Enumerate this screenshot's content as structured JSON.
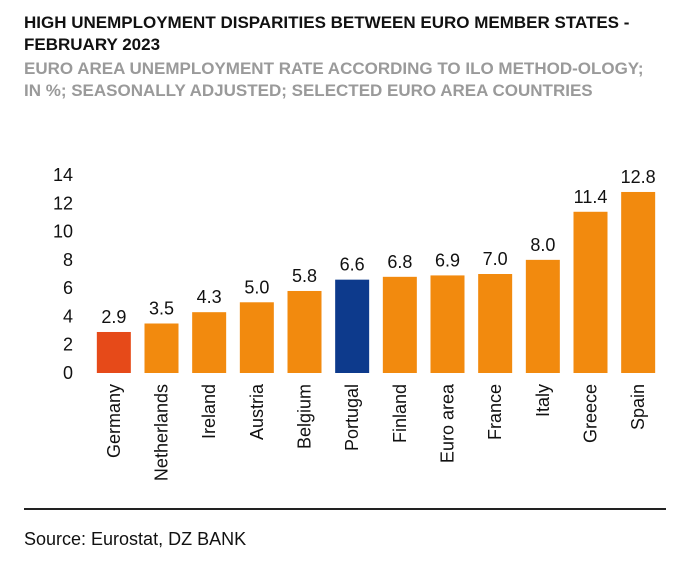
{
  "title": "HIGH UNEMPLOYMENT DISPARITIES BETWEEN EURO MEMBER STATES - FEBRUARY 2023",
  "subtitle": "EURO AREA UNEMPLOYMENT RATE ACCORDING TO ILO METHOD-OLOGY; IN %; SEASONALLY ADJUSTED; SELECTED EURO AREA COUNTRIES",
  "source": "Source: Eurostat, DZ BANK",
  "colors": {
    "default": "#F28A0E",
    "germany": "#E64A19",
    "portugal": "#0D3A8C"
  },
  "chart_data": {
    "type": "bar",
    "categories": [
      "Germany",
      "Netherlands",
      "Ireland",
      "Austria",
      "Belgium",
      "Portugal",
      "Finland",
      "Euro area",
      "France",
      "Italy",
      "Greece",
      "Spain"
    ],
    "values": [
      2.9,
      3.5,
      4.3,
      5.0,
      5.8,
      6.6,
      6.8,
      6.9,
      7.0,
      8.0,
      11.4,
      12.8
    ],
    "value_labels": [
      "2.9",
      "3.5",
      "4.3",
      "5.0",
      "5.8",
      "6.6",
      "6.8",
      "6.9",
      "7.0",
      "8.0",
      "11.4",
      "12.8"
    ],
    "bar_colors": [
      "#E64A19",
      "#F28A0E",
      "#F28A0E",
      "#F28A0E",
      "#F28A0E",
      "#0D3A8C",
      "#F28A0E",
      "#F28A0E",
      "#F28A0E",
      "#F28A0E",
      "#F28A0E",
      "#F28A0E"
    ],
    "yticks": [
      "0",
      "2",
      "4",
      "6",
      "8",
      "10",
      "12",
      "14"
    ],
    "ylim": [
      0,
      14
    ],
    "grid": false,
    "legend": false
  }
}
